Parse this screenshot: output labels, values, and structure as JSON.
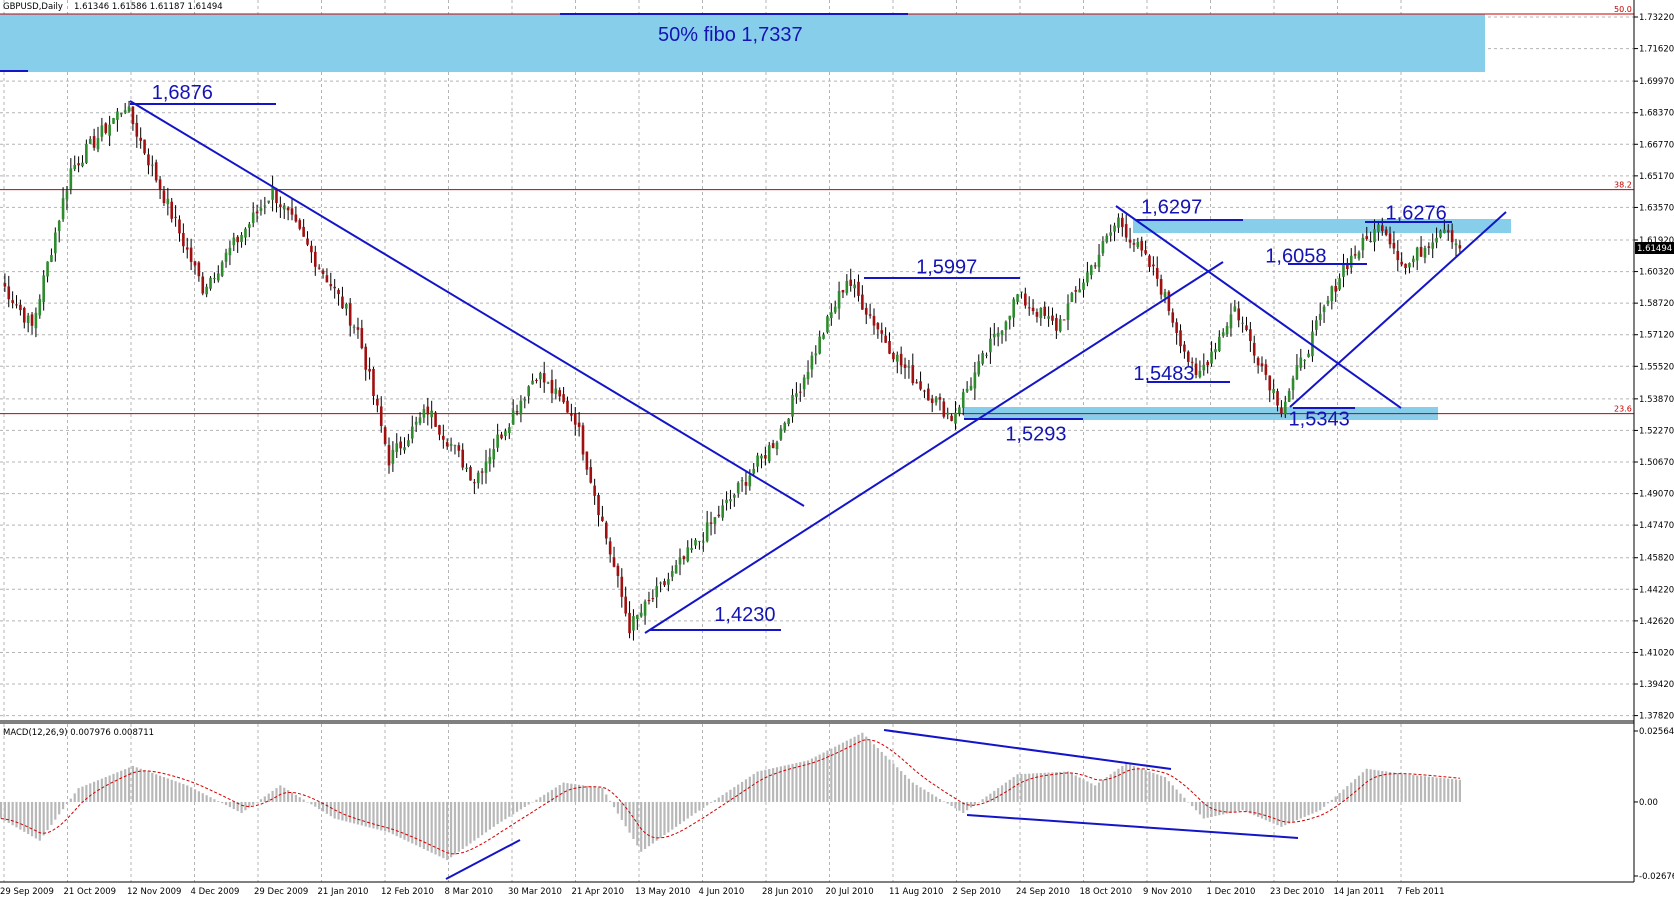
{
  "header": {
    "symbol": "GBPUSD,Daily",
    "ohlc": "1.61346 1.61586 1.61187 1.61494"
  },
  "macd": {
    "label": "MACD(12,26,9) 0.007976 0.008711"
  },
  "colors": {
    "bull": "#2e8b2e",
    "bear": "#a01010",
    "trendline": "#1414c8",
    "zone": "#87ceeb",
    "fib_line": "#c80000",
    "grid": "#b4b4b4",
    "hist": "#b8b8b8",
    "signal": "#d00000"
  },
  "chart_data": [
    {
      "type": "candlestick",
      "title": "GBPUSD,Daily",
      "ylim": [
        1.3785,
        1.7322
      ],
      "yticks": [
        "1.73220",
        "1.71620",
        "1.69970",
        "1.68370",
        "1.66770",
        "1.65170",
        "1.63570",
        "1.61920",
        "1.60320",
        "1.58720",
        "1.57120",
        "1.55520",
        "1.53870",
        "1.52270",
        "1.50670",
        "1.49070",
        "1.47470",
        "1.45820",
        "1.44220",
        "1.42620",
        "1.41020",
        "1.39420",
        "1.37820"
      ],
      "current_price": "1.61494",
      "xticks": [
        "29 Sep 2009",
        "21 Oct 2009",
        "12 Nov 2009",
        "4 Dec 2009",
        "29 Dec 2009",
        "21 Jan 2010",
        "12 Feb 2010",
        "8 Mar 2010",
        "30 Mar 2010",
        "21 Apr 2010",
        "13 May 2010",
        "4 Jun 2010",
        "28 Jun 2010",
        "20 Jul 2010",
        "11 Aug 2010",
        "2 Sep 2010",
        "24 Sep 2010",
        "18 Oct 2010",
        "9 Nov 2010",
        "1 Dec 2010",
        "23 Dec 2010",
        "14 Jan 2011",
        "7 Feb 2011"
      ],
      "pivots": [
        {
          "bar": 0,
          "price": 1.598
        },
        {
          "bar": 8,
          "price": 1.575
        },
        {
          "bar": 18,
          "price": 1.655
        },
        {
          "bar": 32,
          "price": 1.6876
        },
        {
          "bar": 52,
          "price": 1.595
        },
        {
          "bar": 70,
          "price": 1.644
        },
        {
          "bar": 84,
          "price": 1.6
        },
        {
          "bar": 92,
          "price": 1.573
        },
        {
          "bar": 100,
          "price": 1.508
        },
        {
          "bar": 110,
          "price": 1.533
        },
        {
          "bar": 122,
          "price": 1.498
        },
        {
          "bar": 138,
          "price": 1.552
        },
        {
          "bar": 148,
          "price": 1.529
        },
        {
          "bar": 162,
          "price": 1.423
        },
        {
          "bar": 178,
          "price": 1.462
        },
        {
          "bar": 200,
          "price": 1.519
        },
        {
          "bar": 218,
          "price": 1.5997
        },
        {
          "bar": 232,
          "price": 1.556
        },
        {
          "bar": 245,
          "price": 1.5293
        },
        {
          "bar": 262,
          "price": 1.591
        },
        {
          "bar": 272,
          "price": 1.575
        },
        {
          "bar": 288,
          "price": 1.6297
        },
        {
          "bar": 298,
          "price": 1.6
        },
        {
          "bar": 308,
          "price": 1.5483
        },
        {
          "bar": 318,
          "price": 1.585
        },
        {
          "bar": 330,
          "price": 1.5343
        },
        {
          "bar": 346,
          "price": 1.6058
        },
        {
          "bar": 356,
          "price": 1.6276
        },
        {
          "bar": 362,
          "price": 1.605
        },
        {
          "bar": 372,
          "price": 1.6276
        },
        {
          "bar": 376,
          "price": 1.61494
        }
      ],
      "annotations": {
        "fibo_label": "50% fibo 1,7337",
        "levels": [
          {
            "text": "1,6876",
            "bar": 44,
            "price": 1.6876
          },
          {
            "text": "1,4230",
            "bar": 189,
            "price": 1.423
          },
          {
            "text": "1,5997",
            "bar": 241,
            "price": 1.5997
          },
          {
            "text": "1,5293",
            "bar": 264,
            "price": 1.5293
          },
          {
            "text": "1,6297",
            "bar": 299,
            "price": 1.6297
          },
          {
            "text": "1,5483",
            "bar": 297,
            "price": 1.5483
          },
          {
            "text": "1,6058",
            "bar": 331,
            "price": 1.6058
          },
          {
            "text": "1,5343",
            "bar": 337,
            "price": 1.5343
          },
          {
            "text": "1,6276",
            "bar": 362,
            "price": 1.6276
          }
        ]
      },
      "fib_levels": [
        {
          "label": "50.0",
          "price": 1.7337
        },
        {
          "label": "38.2",
          "price": 1.6447
        },
        {
          "label": "23.6",
          "price": 1.5312
        }
      ]
    },
    {
      "type": "bar",
      "title": "MACD(12,26,9) 0.007976 0.008711",
      "ylim": [
        -0.02676,
        0.025642
      ],
      "yticks": [
        "0.025642",
        "0.00",
        "-0.02676"
      ],
      "macd_pivots": [
        {
          "bar": 0,
          "value": -0.006
        },
        {
          "bar": 10,
          "value": -0.014
        },
        {
          "bar": 20,
          "value": 0.005
        },
        {
          "bar": 34,
          "value": 0.013
        },
        {
          "bar": 48,
          "value": 0.006
        },
        {
          "bar": 62,
          "value": -0.004
        },
        {
          "bar": 72,
          "value": 0.006
        },
        {
          "bar": 86,
          "value": -0.006
        },
        {
          "bar": 100,
          "value": -0.011
        },
        {
          "bar": 115,
          "value": -0.021
        },
        {
          "bar": 128,
          "value": -0.008
        },
        {
          "bar": 145,
          "value": 0.007
        },
        {
          "bar": 155,
          "value": 0.005
        },
        {
          "bar": 165,
          "value": -0.018
        },
        {
          "bar": 178,
          "value": -0.005
        },
        {
          "bar": 195,
          "value": 0.011
        },
        {
          "bar": 208,
          "value": 0.015
        },
        {
          "bar": 222,
          "value": 0.025
        },
        {
          "bar": 235,
          "value": 0.007
        },
        {
          "bar": 248,
          "value": -0.004
        },
        {
          "bar": 262,
          "value": 0.01
        },
        {
          "bar": 275,
          "value": 0.011
        },
        {
          "bar": 282,
          "value": 0.006
        },
        {
          "bar": 290,
          "value": 0.014
        },
        {
          "bar": 300,
          "value": 0.009
        },
        {
          "bar": 310,
          "value": -0.006
        },
        {
          "bar": 320,
          "value": -0.003
        },
        {
          "bar": 330,
          "value": -0.009
        },
        {
          "bar": 340,
          "value": -0.003
        },
        {
          "bar": 352,
          "value": 0.012
        },
        {
          "bar": 362,
          "value": 0.01
        },
        {
          "bar": 376,
          "value": 0.008
        }
      ]
    }
  ]
}
